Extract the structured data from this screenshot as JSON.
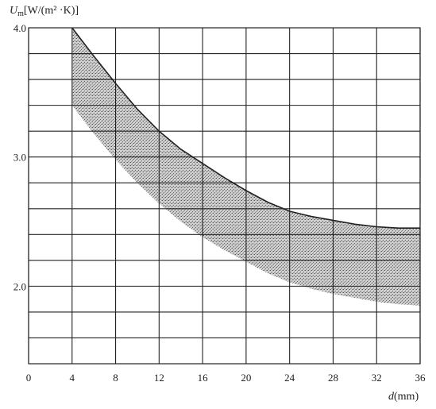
{
  "chart_data": {
    "type": "area",
    "ylabel_main": "U",
    "ylabel_sub": "m",
    "ylabel_unit": "[W/(m² ·K)]",
    "xlabel_main": "d",
    "xlabel_unit": "(mm)",
    "xlim": [
      0,
      36
    ],
    "ylim": [
      1.4,
      4.0
    ],
    "x_ticks": [
      0,
      4,
      8,
      12,
      16,
      20,
      24,
      28,
      32,
      36
    ],
    "x_tick_labels": [
      "0",
      "4",
      "8",
      "12",
      "16",
      "20",
      "24",
      "28",
      "32",
      "36"
    ],
    "y_ticks": [
      2.0,
      3.0,
      4.0
    ],
    "y_tick_labels": [
      "2.0",
      "3.0",
      "4.0"
    ],
    "grid_y": [
      1.6,
      1.8,
      2.0,
      2.2,
      2.4,
      2.6,
      2.8,
      3.0,
      3.2,
      3.4,
      3.6,
      3.8,
      4.0
    ],
    "grid_x": [
      0,
      4,
      8,
      12,
      16,
      20,
      24,
      28,
      32,
      36
    ],
    "grid": true,
    "band": {
      "upper": {
        "x": [
          4,
          6,
          8,
          10,
          12,
          14,
          16,
          18,
          20,
          22,
          24,
          26,
          28,
          30,
          32,
          34,
          36
        ],
        "y": [
          4.0,
          3.78,
          3.57,
          3.37,
          3.2,
          3.06,
          2.95,
          2.84,
          2.74,
          2.65,
          2.58,
          2.54,
          2.51,
          2.48,
          2.46,
          2.45,
          2.45
        ]
      },
      "lower": {
        "x": [
          4,
          6,
          8,
          10,
          12,
          14,
          16,
          18,
          20,
          22,
          24,
          26,
          28,
          30,
          32,
          34,
          36
        ],
        "y": [
          3.4,
          3.18,
          2.98,
          2.8,
          2.64,
          2.5,
          2.38,
          2.28,
          2.19,
          2.1,
          2.03,
          1.98,
          1.94,
          1.91,
          1.88,
          1.86,
          1.85
        ]
      }
    }
  }
}
